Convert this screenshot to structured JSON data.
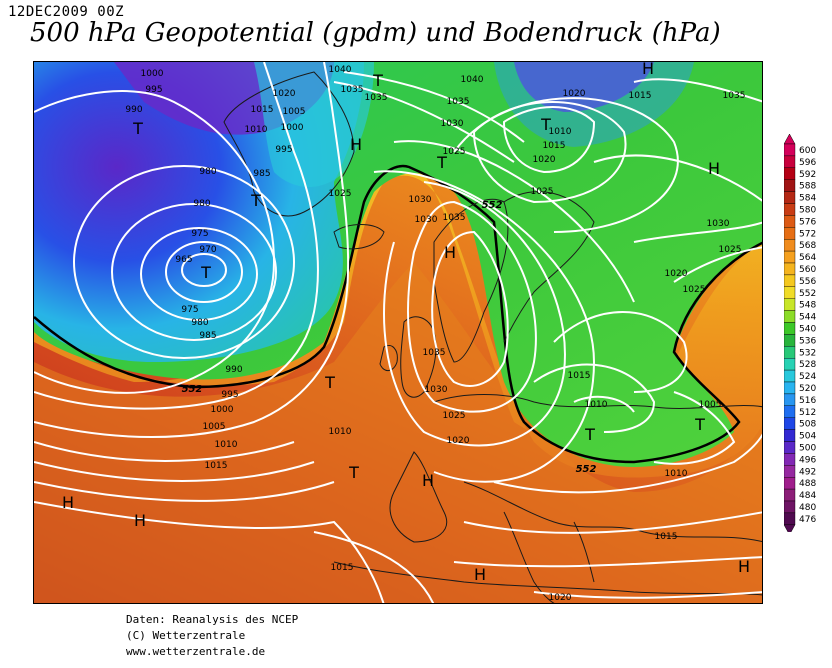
{
  "header": {
    "date": "12DEC2009 00Z",
    "title": "500 hPa Geopotential (gpdm) und Bodendruck (hPa)"
  },
  "credits": {
    "line1": "Daten: Reanalysis des NCEP",
    "line2": "(C) Wetterzentrale",
    "line3": "www.wetterzentrale.de"
  },
  "legend": {
    "values": [
      "600",
      "596",
      "592",
      "588",
      "584",
      "580",
      "576",
      "572",
      "568",
      "564",
      "560",
      "556",
      "552",
      "548",
      "544",
      "540",
      "536",
      "532",
      "528",
      "524",
      "520",
      "516",
      "512",
      "508",
      "504",
      "500",
      "496",
      "492",
      "488",
      "484",
      "480",
      "476"
    ],
    "colors": [
      "#d4005a",
      "#c8003c",
      "#b40014",
      "#a01414",
      "#b42814",
      "#c83c14",
      "#dc5a14",
      "#e66e14",
      "#f08c1e",
      "#f5a01e",
      "#f5b41e",
      "#f5c81e",
      "#f0dc28",
      "#c8e628",
      "#8cdc28",
      "#3cc828",
      "#28b43c",
      "#28c878",
      "#28d2b4",
      "#28c8dc",
      "#28b4f0",
      "#2896f0",
      "#1e6ef0",
      "#1e46e6",
      "#3228d2",
      "#5a28c8",
      "#8228b4",
      "#9628a0",
      "#a01e8c",
      "#8c1e78",
      "#6e1464",
      "#500a50"
    ]
  },
  "map": {
    "colors": {
      "violet": "#7832d2",
      "blue": "#2864f0",
      "cyan": "#28c8dc",
      "green": "#3cc83c",
      "yellow": "#f5dc28",
      "orange": "#f08c1e",
      "red": "#c83c14",
      "isobar": "#ffffff",
      "coast": "#1a1a1a",
      "contour": "#000000"
    },
    "pressure_labels": [
      "1000",
      "995",
      "990",
      "1015",
      "1020",
      "1005",
      "1010",
      "1000",
      "995",
      "980",
      "985",
      "980",
      "975",
      "970",
      "965",
      "975",
      "980",
      "985",
      "990",
      "995",
      "1000",
      "1005",
      "1010",
      "1015",
      "1040",
      "1035",
      "1035",
      "1040",
      "1035",
      "1030",
      "1025",
      "1025",
      "1030",
      "1035",
      "1020",
      "1010",
      "1015",
      "1020",
      "1025",
      "1015",
      "1035",
      "1030",
      "1020",
      "1025",
      "1035",
      "1030",
      "1025",
      "1020",
      "1010",
      "1015",
      "1010",
      "1005",
      "1010",
      "1015",
      "1015",
      "1020",
      "1030",
      "1025"
    ],
    "height_labels": [
      "552",
      "552",
      "552"
    ],
    "centers": [
      "T",
      "T",
      "T",
      "T",
      "T",
      "T",
      "T",
      "T",
      "T",
      "T",
      "H",
      "H",
      "H",
      "H",
      "H",
      "H",
      "H",
      "H",
      "H"
    ]
  }
}
